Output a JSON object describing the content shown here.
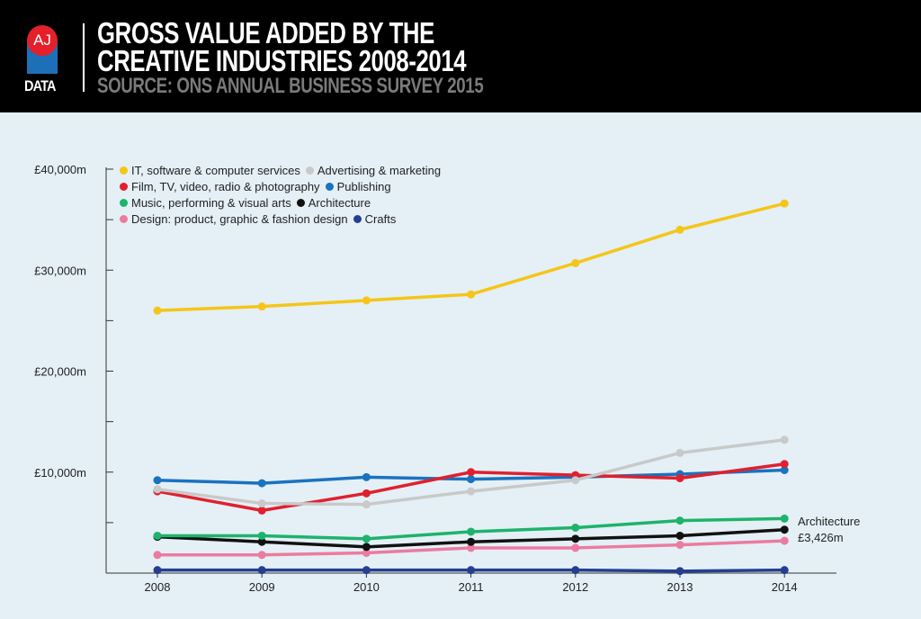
{
  "header": {
    "logo_top": "AJ",
    "logo_bottom": "DATA",
    "title_line1": "GROSS VALUE ADDED BY THE",
    "title_line2": "CREATIVE INDUSTRIES 2008-2014",
    "source": "SOURCE: ONS ANNUAL BUSINESS SURVEY 2015"
  },
  "chart_data": {
    "type": "line",
    "title": "GROSS VALUE ADDED BY THE CREATIVE INDUSTRIES 2008-2014",
    "xlabel": "",
    "ylabel": "",
    "x": [
      "2008",
      "2009",
      "2010",
      "2011",
      "2012",
      "2013",
      "2014"
    ],
    "ylim": [
      0,
      40000
    ],
    "y_ticks": [
      {
        "value": 10000,
        "label": "£10,000m"
      },
      {
        "value": 20000,
        "label": "£20,000m"
      },
      {
        "value": 30000,
        "label": "£30,000m"
      },
      {
        "value": 40000,
        "label": "£40,000m"
      }
    ],
    "minor_ticks": [
      5000,
      15000,
      25000,
      35000
    ],
    "grid": false,
    "legend_position": "top-left",
    "series": [
      {
        "name": "IT, software & computer services",
        "color": "#f5c518",
        "values": [
          26000,
          26400,
          27000,
          27600,
          30700,
          34000,
          36600
        ]
      },
      {
        "name": "Advertising & marketing",
        "color": "#c9c9c9",
        "values": [
          8300,
          6900,
          6800,
          8100,
          9200,
          11900,
          13200
        ]
      },
      {
        "name": "Film, TV, video, radio & photography",
        "color": "#e0202e",
        "values": [
          8100,
          6200,
          7900,
          10000,
          9700,
          9400,
          10800
        ]
      },
      {
        "name": "Publishing",
        "color": "#1a72c0",
        "values": [
          9200,
          8900,
          9500,
          9300,
          9500,
          9800,
          10200
        ]
      },
      {
        "name": "Music, performing & visual arts",
        "color": "#1db36b",
        "values": [
          3700,
          3700,
          3400,
          4100,
          4500,
          5200,
          5400
        ]
      },
      {
        "name": "Architecture",
        "color": "#111111",
        "values": [
          3600,
          3100,
          2600,
          3100,
          3400,
          3700,
          4300
        ]
      },
      {
        "name": "Design: product, graphic & fashion design",
        "color": "#ec7ba0",
        "values": [
          1800,
          1800,
          2000,
          2500,
          2500,
          2800,
          3200
        ]
      },
      {
        "name": "Crafts",
        "color": "#243f90",
        "values": [
          300,
          300,
          300,
          300,
          300,
          200,
          300
        ]
      }
    ],
    "annotation": {
      "line1": "Architecture",
      "line2": "£3,426m"
    }
  }
}
